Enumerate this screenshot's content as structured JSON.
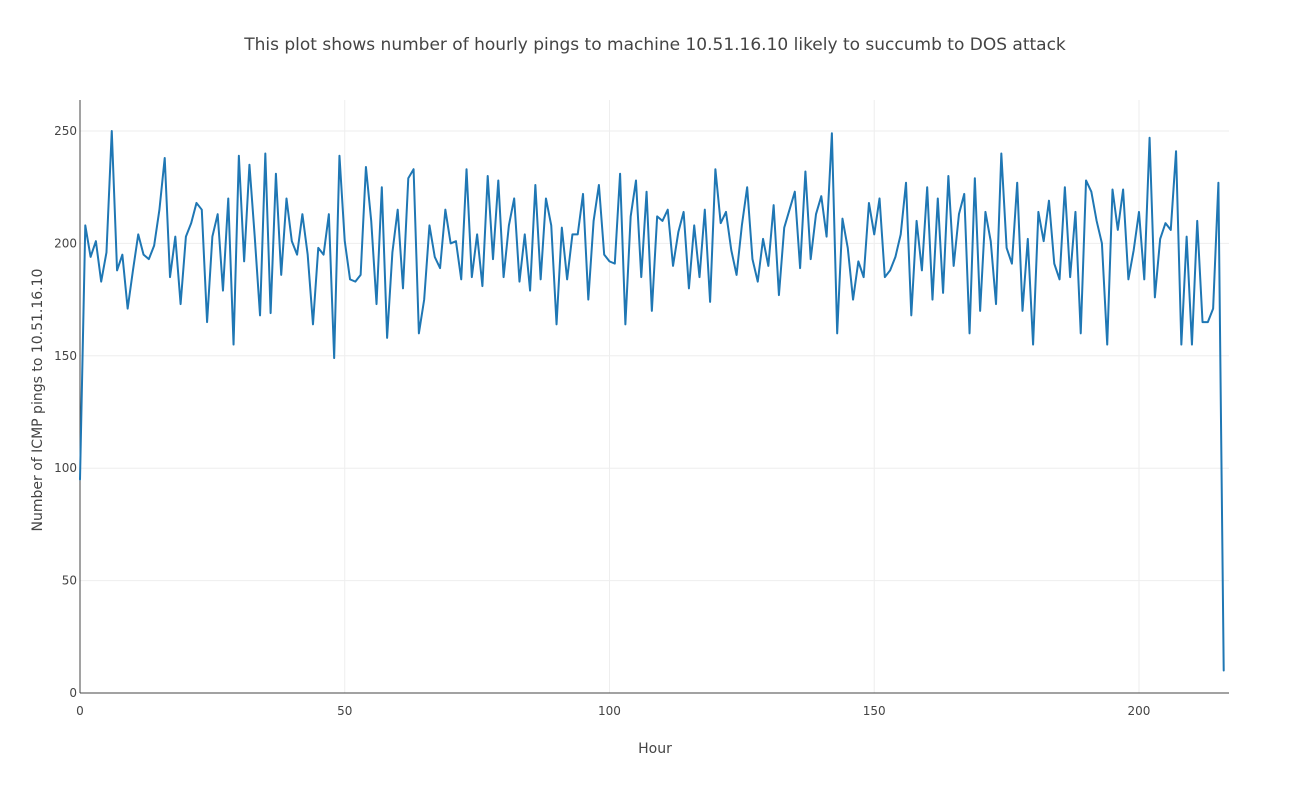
{
  "chart_data": {
    "type": "line",
    "title": "This plot shows number of hourly pings to machine 10.51.16.10 likely to succumb to DOS attack",
    "xlabel": "Hour",
    "ylabel": "Number of ICMP pings to 10.51.16.10",
    "xlim": [
      0,
      217
    ],
    "ylim": [
      0,
      250
    ],
    "x_ticks": [
      0,
      50,
      100,
      150,
      200
    ],
    "y_ticks": [
      0,
      50,
      100,
      150,
      200,
      250
    ],
    "grid": true,
    "legend": "none",
    "series": [
      {
        "color": "#1f77b4",
        "values": [
          95,
          208,
          194,
          201,
          183,
          196,
          250,
          188,
          195,
          171,
          188,
          204,
          195,
          193,
          199,
          215,
          238,
          185,
          203,
          173,
          203,
          209,
          218,
          215,
          165,
          203,
          213,
          179,
          220,
          155,
          239,
          192,
          235,
          203,
          168,
          240,
          169,
          231,
          186,
          220,
          201,
          195,
          213,
          195,
          164,
          198,
          195,
          213,
          149,
          239,
          201,
          184,
          183,
          186,
          234,
          210,
          173,
          225,
          158,
          196,
          215,
          180,
          229,
          233,
          160,
          175,
          208,
          194,
          189,
          215,
          200,
          201,
          184,
          233,
          185,
          204,
          181,
          230,
          193,
          228,
          185,
          208,
          220,
          183,
          204,
          179,
          226,
          184,
          220,
          208,
          164,
          207,
          184,
          204,
          204,
          222,
          175,
          210,
          226,
          195,
          192,
          191,
          231,
          164,
          212,
          228,
          185,
          223,
          170,
          212,
          210,
          215,
          190,
          205,
          214,
          180,
          208,
          185,
          215,
          174,
          233,
          209,
          214,
          197,
          186,
          208,
          225,
          193,
          183,
          202,
          190,
          217,
          177,
          207,
          215,
          223,
          189,
          232,
          193,
          213,
          221,
          203,
          249,
          160,
          211,
          198,
          175,
          192,
          185,
          218,
          204,
          220,
          185,
          188,
          194,
          204,
          227,
          168,
          210,
          188,
          225,
          175,
          220,
          178,
          230,
          190,
          213,
          222,
          160,
          229,
          170,
          214,
          201,
          173,
          240,
          198,
          191,
          227,
          170,
          202,
          155,
          214,
          201,
          219,
          191,
          184,
          225,
          185,
          214,
          160,
          228,
          223,
          210,
          200,
          155,
          224,
          206,
          224,
          184,
          197,
          214,
          184,
          247,
          176,
          202,
          209,
          206,
          241,
          155,
          203,
          155,
          210,
          165,
          165,
          171,
          227,
          10
        ]
      }
    ]
  }
}
